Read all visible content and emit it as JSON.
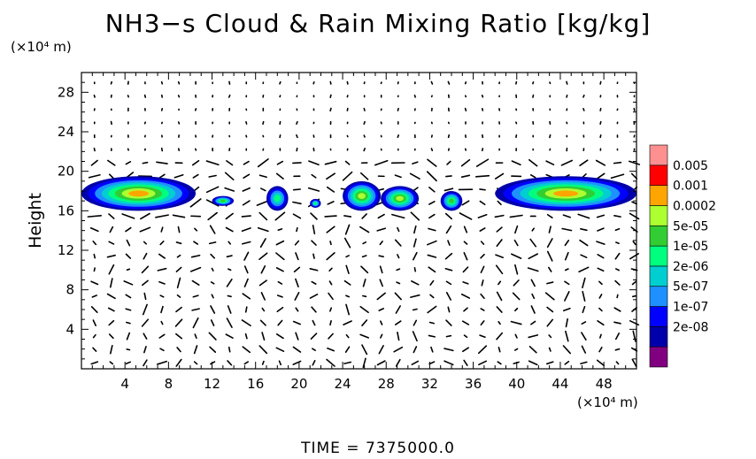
{
  "title": "NH3−s Cloud & Rain Mixing Ratio [kg/kg]",
  "y_unit": "(×10⁴ m)",
  "x_unit": "(×10⁴ m)",
  "footer": "TIME  =  7375000.0",
  "colors": {
    "scale": [
      "#800080",
      "#0000aa",
      "#0000ff",
      "#1e90ff",
      "#00ced1",
      "#00ff7f",
      "#32cd32",
      "#adff2f",
      "#ffa500",
      "#ff0000",
      "#ff9090"
    ]
  },
  "chart_data": {
    "type": "heatmap",
    "title": "NH3−s Cloud & Rain Mixing Ratio [kg/kg]",
    "ylabel": "Height",
    "xlabel": "",
    "xlim": [
      0,
      51
    ],
    "ylim": [
      0,
      30
    ],
    "x_ticks": [
      "4",
      "8",
      "12",
      "16",
      "20",
      "24",
      "28",
      "32",
      "36",
      "40",
      "44",
      "48"
    ],
    "y_ticks": [
      "4",
      "8",
      "12",
      "16",
      "20",
      "24",
      "28"
    ],
    "x_tick_values": [
      4,
      8,
      12,
      16,
      20,
      24,
      28,
      32,
      36,
      40,
      44,
      48
    ],
    "y_tick_values": [
      4,
      8,
      12,
      16,
      20,
      24,
      28
    ],
    "colorbar_labels": [
      "0.005",
      "0.001",
      "0.0002",
      "5e-05",
      "1e-05",
      "2e-06",
      "5e-07",
      "1e-07",
      "2e-08"
    ],
    "cloud_clusters": [
      {
        "x": [
          0,
          10.5
        ],
        "y": [
          16.0,
          19.5
        ],
        "peak": 0.001
      },
      {
        "x": [
          12,
          14
        ],
        "y": [
          16.5,
          17.5
        ],
        "peak": 5e-05
      },
      {
        "x": [
          17,
          19
        ],
        "y": [
          16.0,
          18.5
        ],
        "peak": 1e-05
      },
      {
        "x": [
          21,
          22
        ],
        "y": [
          16.3,
          17.2
        ],
        "peak": 1e-05
      },
      {
        "x": [
          24,
          27.5
        ],
        "y": [
          16.0,
          19.0
        ],
        "peak": 0.0002
      },
      {
        "x": [
          27.5,
          31
        ],
        "y": [
          16.0,
          18.5
        ],
        "peak": 0.0002
      },
      {
        "x": [
          33,
          35
        ],
        "y": [
          16.0,
          18.0
        ],
        "peak": 5e-05
      },
      {
        "x": [
          38,
          51
        ],
        "y": [
          16.0,
          19.5
        ],
        "peak": 0.001
      }
    ],
    "vectors": "wind vectors plotted across the domain"
  }
}
